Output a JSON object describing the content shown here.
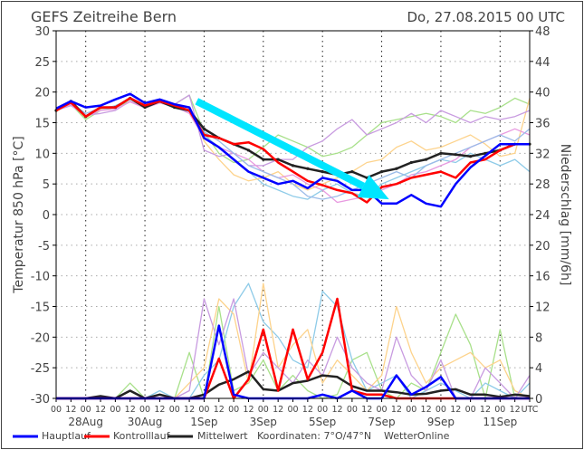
{
  "chart_data": {
    "type": "line",
    "title": "GEFS Zeitreihe Bern",
    "run": "Do, 27.08.2015 00 UTC",
    "ylabel": "Temperatur 850 hPa [°C]",
    "y2label": "Niederschlag [mm/6h]",
    "ylim": [
      -30,
      30
    ],
    "y2lim": [
      0,
      48
    ],
    "yticks": [
      30,
      25,
      20,
      15,
      10,
      5,
      0,
      -5,
      -10,
      -15,
      -20,
      -25,
      -30
    ],
    "y2ticks": [
      48,
      44,
      40,
      36,
      32,
      28,
      24,
      20,
      16,
      12,
      8,
      4,
      0
    ],
    "x_hour_labels": [
      "00",
      "12",
      "00",
      "12",
      "00",
      "12",
      "00",
      "12",
      "00",
      "12",
      "00",
      "12",
      "00",
      "12",
      "00",
      "12",
      "00",
      "12",
      "00",
      "12",
      "00",
      "12",
      "00",
      "12",
      "00",
      "12",
      "00",
      "12",
      "00",
      "12",
      "00",
      "12",
      "UTC"
    ],
    "x_date_labels": [
      {
        "label": "28Aug",
        "step": 2
      },
      {
        "label": "30Aug",
        "step": 6
      },
      {
        "label": "1Sep",
        "step": 10
      },
      {
        "label": "3Sep",
        "step": 14
      },
      {
        "label": "5Sep",
        "step": 18
      },
      {
        "label": "7Sep",
        "step": 22
      },
      {
        "label": "9Sep",
        "step": 26
      },
      {
        "label": "11Sep",
        "step": 30
      }
    ],
    "x_step_hours": 12,
    "series": [
      {
        "name": "Hauptlauf",
        "color": "#0000ff",
        "temperature": [
          17.3,
          18.5,
          17.5,
          17.8,
          18.8,
          19.7,
          18.2,
          18.8,
          18.0,
          17.5,
          12.5,
          11.0,
          9.0,
          7.0,
          6.0,
          5.0,
          5.5,
          4.3,
          6.0,
          5.5,
          4.0,
          4.0,
          1.8,
          1.8,
          3.2,
          1.8,
          1.3,
          5.0,
          7.7,
          9.6,
          11.5,
          11.5,
          11.5
        ],
        "precip": [
          0,
          0,
          0,
          0,
          0,
          0,
          0,
          0,
          0,
          0,
          0,
          9.5,
          0.5,
          0,
          0,
          0,
          0,
          0,
          0.5,
          0,
          1,
          0,
          0,
          3,
          0.5,
          1.5,
          2.8,
          0,
          0,
          0,
          0,
          0,
          0
        ]
      },
      {
        "name": "Kontrolllauf",
        "color": "#ff0000",
        "temperature": [
          17.0,
          18.3,
          16.0,
          17.5,
          17.5,
          19.0,
          17.8,
          18.5,
          17.8,
          17.0,
          13.0,
          12.5,
          11.5,
          11.8,
          10.7,
          8.5,
          7.0,
          5.5,
          4.8,
          4.0,
          3.5,
          2.0,
          4.5,
          5.0,
          6.0,
          6.5,
          7.0,
          6.0,
          8.5,
          9.0,
          10.5,
          11.5,
          11.5
        ],
        "precip": [
          0,
          0,
          0,
          0,
          0,
          0,
          0,
          0,
          0,
          0,
          0,
          5.2,
          0,
          2.5,
          9,
          1,
          9,
          2.5,
          6,
          13,
          1,
          0.5,
          0.5,
          0,
          0,
          0,
          0,
          0,
          0,
          0,
          0,
          0,
          0
        ]
      },
      {
        "name": "Mittelwert",
        "color": "#222222",
        "temperature": [
          17.0,
          18.5,
          16.0,
          17.5,
          17.5,
          19.0,
          17.5,
          18.5,
          17.5,
          17.0,
          14.0,
          12.5,
          11.5,
          10.5,
          9.0,
          9.0,
          8.0,
          7.5,
          7.0,
          6.5,
          7.0,
          6.0,
          7.0,
          7.5,
          8.5,
          9.0,
          10.0,
          9.8,
          9.5,
          10.0,
          10.5,
          11.5,
          11.5
        ],
        "precip": [
          0,
          0,
          0,
          0.3,
          0,
          1,
          0,
          0.5,
          0,
          0,
          0.5,
          1.8,
          2.5,
          3.5,
          1.2,
          1,
          2,
          2.3,
          3,
          2.8,
          1.6,
          1,
          1,
          0.8,
          0.5,
          0.6,
          1,
          1.2,
          0.5,
          0.5,
          0.2,
          0.5,
          0.3
        ]
      }
    ],
    "ensemble_members": [
      {
        "color": "#a8e08a",
        "temperature": [
          17,
          18,
          15.5,
          17,
          17.5,
          18.5,
          17.5,
          18.5,
          18,
          19.5,
          13.5,
          10,
          8.5,
          9,
          11,
          13,
          12,
          11,
          9.5,
          10,
          11,
          13,
          15,
          15.5,
          16,
          16.5,
          16,
          15,
          17,
          16.5,
          17.5,
          19,
          18
        ],
        "precip": [
          0,
          0,
          0,
          0,
          0,
          2,
          0,
          0,
          0,
          6,
          0,
          12,
          1,
          2,
          5,
          1,
          3,
          1,
          0,
          0.5,
          5,
          6,
          1,
          0,
          2,
          1,
          6,
          11,
          7,
          0,
          9,
          0,
          0
        ]
      },
      {
        "color": "#8ecbe8",
        "temperature": [
          17.2,
          18,
          16,
          17,
          17.8,
          18.8,
          17.8,
          18.3,
          17.5,
          17,
          13,
          11,
          9,
          7,
          5,
          4,
          3,
          2.5,
          4,
          5,
          3.5,
          3,
          5,
          6,
          7,
          8,
          9,
          8.5,
          10,
          9,
          8,
          9,
          7
        ],
        "precip": [
          0,
          0,
          0,
          0,
          0,
          0,
          0,
          1,
          0,
          0,
          3,
          5,
          12,
          15,
          10,
          8,
          5,
          4,
          14,
          12,
          5,
          1,
          2,
          3,
          0,
          1,
          2,
          1,
          0,
          2,
          1,
          0,
          2
        ]
      },
      {
        "color": "#fdd38c",
        "temperature": [
          16.8,
          18.2,
          15.8,
          17.2,
          17.6,
          19,
          17.6,
          18.6,
          17.8,
          17.5,
          12,
          9,
          6.5,
          5.5,
          6,
          7,
          5,
          4,
          5,
          6,
          7,
          8.5,
          9,
          11,
          12,
          10.5,
          11,
          12,
          13,
          11.5,
          9.5,
          10,
          19
        ],
        "precip": [
          0,
          0,
          0,
          0,
          0,
          1,
          0,
          0,
          0,
          2,
          4,
          13,
          11,
          2,
          15,
          4,
          7,
          9,
          2,
          5,
          3,
          1,
          3,
          12,
          6,
          2,
          4,
          5,
          6,
          4,
          5,
          1,
          0
        ]
      },
      {
        "color": "#c89be0",
        "temperature": [
          17,
          17.8,
          16.2,
          16.5,
          17,
          18.5,
          17.5,
          18.8,
          18,
          19.5,
          10.5,
          9.5,
          10,
          8,
          8,
          9,
          9,
          11,
          12,
          14,
          15.5,
          13,
          14,
          15,
          16.5,
          15,
          17,
          16,
          15,
          16,
          15.5,
          16,
          17
        ],
        "precip": [
          0,
          0,
          0,
          0,
          0,
          0,
          0,
          0,
          0,
          1,
          13,
          7,
          13,
          3,
          6,
          4,
          2,
          5,
          3,
          8,
          4,
          2,
          1,
          8,
          3,
          1,
          5,
          0,
          0,
          4,
          2,
          0,
          3
        ]
      },
      {
        "color": "#e89ae0",
        "temperature": [
          17.1,
          18,
          16,
          17,
          17.2,
          18.4,
          17.4,
          18.2,
          17.6,
          16.5,
          12.5,
          11,
          10,
          9,
          7,
          6,
          6.5,
          5,
          4,
          2,
          2.5,
          3,
          4,
          5,
          6.5,
          7,
          8,
          9,
          11,
          12,
          13,
          14,
          13
        ]
      },
      {
        "color": "#9bbbe8",
        "temperature": [
          17.3,
          18.2,
          16.5,
          17.4,
          17.7,
          18.9,
          17.7,
          18.4,
          17.4,
          16.8,
          13.5,
          12,
          10,
          8,
          7,
          6,
          5,
          3,
          2.5,
          3,
          4,
          5,
          6,
          7,
          6,
          8,
          9,
          10,
          11,
          12,
          13,
          12,
          14
        ]
      }
    ],
    "annotation": {
      "type": "arrow",
      "color": "#00e5ff",
      "from": {
        "step": 9.5,
        "value": 18.5
      },
      "to": {
        "step": 22.5,
        "value": 2.5
      }
    }
  },
  "legend": {
    "items": [
      {
        "label": "Hauptlauf",
        "color": "#0000ff"
      },
      {
        "label": "Kontrolllauf",
        "color": "#ff0000"
      },
      {
        "label": "Mittelwert",
        "color": "#222222"
      }
    ],
    "coordinates": "Koordinaten:  7°O/47°N",
    "brand": "WetterOnline"
  }
}
